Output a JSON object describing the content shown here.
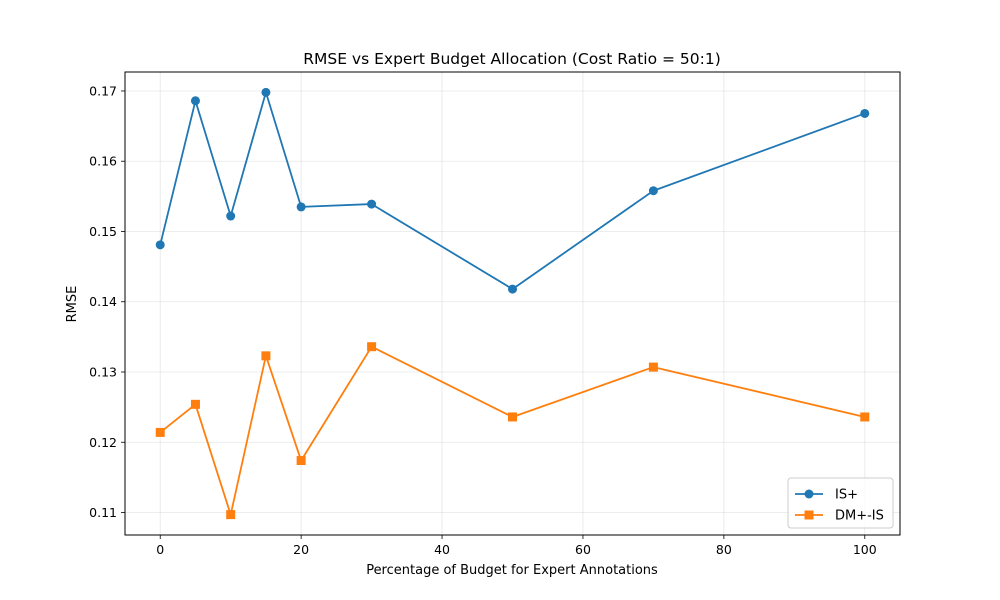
{
  "chart_data": {
    "type": "line",
    "title": "RMSE vs Expert Budget Allocation (Cost Ratio = 50:1)",
    "xlabel": "Percentage of Budget for Expert Annotations",
    "ylabel": "RMSE",
    "x": [
      0,
      5,
      10,
      15,
      20,
      30,
      50,
      70,
      100
    ],
    "xlim": [
      -5,
      105
    ],
    "ylim": [
      0.1068,
      0.1727
    ],
    "xticks": [
      0,
      20,
      40,
      60,
      80,
      100
    ],
    "yticks": [
      0.11,
      0.12,
      0.13,
      0.14,
      0.15,
      0.16,
      0.17
    ],
    "grid": true,
    "legend_position": "lower-right",
    "series": [
      {
        "name": "IS+",
        "color": "#1f77b4",
        "marker": "circle",
        "values": [
          0.1481,
          0.1686,
          0.1522,
          0.1698,
          0.1535,
          0.1539,
          0.1418,
          0.1558,
          0.1668
        ]
      },
      {
        "name": "DM+-IS",
        "color": "#ff7f0e",
        "marker": "square",
        "values": [
          0.1214,
          0.1254,
          0.1097,
          0.1323,
          0.1174,
          0.1336,
          0.1236,
          0.1307,
          0.1236
        ]
      }
    ]
  }
}
